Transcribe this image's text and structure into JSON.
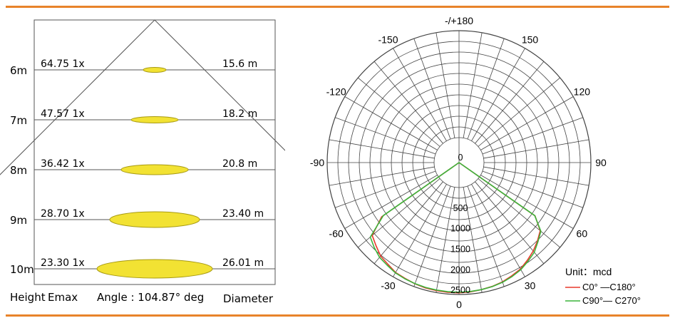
{
  "colors": {
    "accent_rule": "#e8832a",
    "spot_fill": "#f2e233",
    "spot_stroke": "#a79a12",
    "grid_line": "#444444",
    "c0_c180": "#e8392b",
    "c90_c270": "#3cb43c"
  },
  "beam_diagram": {
    "rows": [
      {
        "height": "6m",
        "emax": "64.75 1x",
        "diameter": "15.6 m"
      },
      {
        "height": "7m",
        "emax": "47.57 1x",
        "diameter": "18.2 m"
      },
      {
        "height": "8m",
        "emax": "36.42 1x",
        "diameter": "20.8 m"
      },
      {
        "height": "9m",
        "emax": "28.70 1x",
        "diameter": "23.40 m"
      },
      {
        "height": "10m",
        "emax": "23.30 1x",
        "diameter": "26.01 m"
      }
    ],
    "footer": {
      "height_label": "Height",
      "emax_label": "Emax",
      "angle_label": "Angle : 104.87° deg",
      "diameter_label": "Diameter"
    }
  },
  "chart_data": {
    "type": "polar",
    "angle_labels": [
      {
        "angle": 180,
        "label": "-/+180"
      },
      {
        "angle": -150,
        "label": "-150"
      },
      {
        "angle": 150,
        "label": "150"
      },
      {
        "angle": -120,
        "label": "-120"
      },
      {
        "angle": 120,
        "label": "120"
      },
      {
        "angle": -90,
        "label": "-90"
      },
      {
        "angle": 90,
        "label": "90"
      },
      {
        "angle": -60,
        "label": "-60"
      },
      {
        "angle": 60,
        "label": "60"
      },
      {
        "angle": -30,
        "label": "-30"
      },
      {
        "angle": 30,
        "label": "30"
      },
      {
        "angle": 0,
        "label": "0"
      }
    ],
    "radial_ticks": [
      {
        "value": 0,
        "label": "0"
      },
      {
        "value": 500,
        "label": "500"
      },
      {
        "value": 1000,
        "label": "1000"
      },
      {
        "value": 1500,
        "label": "1500"
      },
      {
        "value": 2000,
        "label": "2000"
      },
      {
        "value": 2500,
        "label": "2500"
      }
    ],
    "rmax": 2600,
    "unit_label": "Unit：mcd",
    "series": [
      {
        "name": "C0° —C180°",
        "color": "#e8392b",
        "points": [
          [
            -60,
            0
          ],
          [
            -55,
            1690
          ],
          [
            -50,
            2150
          ],
          [
            -45,
            2250
          ],
          [
            -40,
            2360
          ],
          [
            -35,
            2410
          ],
          [
            -30,
            2480
          ],
          [
            -25,
            2500
          ],
          [
            -20,
            2530
          ],
          [
            -15,
            2550
          ],
          [
            -10,
            2555
          ],
          [
            -5,
            2560
          ],
          [
            0,
            2560
          ],
          [
            5,
            2550
          ],
          [
            10,
            2530
          ],
          [
            15,
            2510
          ],
          [
            20,
            2480
          ],
          [
            25,
            2430
          ],
          [
            30,
            2380
          ],
          [
            35,
            2290
          ],
          [
            40,
            2200
          ],
          [
            45,
            2090
          ],
          [
            50,
            1970
          ],
          [
            55,
            1650
          ],
          [
            60,
            0
          ]
        ]
      },
      {
        "name": "C90°— C270°",
        "color": "#3cb43c",
        "points": [
          [
            -60,
            0
          ],
          [
            -55,
            1640
          ],
          [
            -50,
            2210
          ],
          [
            -45,
            2310
          ],
          [
            -40,
            2400
          ],
          [
            -35,
            2440
          ],
          [
            -30,
            2490
          ],
          [
            -25,
            2510
          ],
          [
            -20,
            2525
          ],
          [
            -15,
            2535
          ],
          [
            -10,
            2540
          ],
          [
            -5,
            2545
          ],
          [
            0,
            2545
          ],
          [
            5,
            2540
          ],
          [
            10,
            2530
          ],
          [
            15,
            2515
          ],
          [
            20,
            2490
          ],
          [
            25,
            2450
          ],
          [
            30,
            2400
          ],
          [
            35,
            2320
          ],
          [
            40,
            2240
          ],
          [
            45,
            2110
          ],
          [
            50,
            1990
          ],
          [
            55,
            1640
          ],
          [
            60,
            0
          ]
        ]
      }
    ]
  }
}
